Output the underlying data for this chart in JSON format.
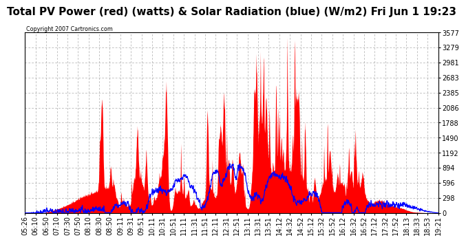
{
  "title": "Total PV Power (red) (watts) & Solar Radiation (blue) (W/m2) Fri Jun 1 19:23",
  "copyright": "Copyright 2007 Cartronics.com",
  "background_color": "#ffffff",
  "y_ticks": [
    0.0,
    298.1,
    596.2,
    894.2,
    1192.3,
    1490.4,
    1788.5,
    2086.5,
    2384.6,
    2682.7,
    2980.8,
    3278.9,
    3576.9
  ],
  "ylim": [
    0,
    3576.9
  ],
  "x_labels": [
    "05:26",
    "06:10",
    "06:50",
    "07:10",
    "07:30",
    "07:50",
    "08:10",
    "08:30",
    "08:50",
    "09:11",
    "09:31",
    "09:51",
    "10:11",
    "10:31",
    "10:51",
    "11:11",
    "11:31",
    "11:51",
    "12:11",
    "12:31",
    "12:51",
    "13:11",
    "13:31",
    "13:51",
    "14:12",
    "14:32",
    "14:52",
    "15:12",
    "15:32",
    "15:52",
    "16:12",
    "16:32",
    "16:52",
    "17:12",
    "17:32",
    "17:52",
    "18:13",
    "18:33",
    "18:53",
    "19:21"
  ],
  "red_color": "#ff0000",
  "blue_color": "#0000ff",
  "grid_color": "#aaaaaa",
  "title_fontsize": 11,
  "tick_fontsize": 7,
  "n_points": 2000,
  "solar_peak": 870,
  "solar_noise_std": 60,
  "pv_max": 3500
}
